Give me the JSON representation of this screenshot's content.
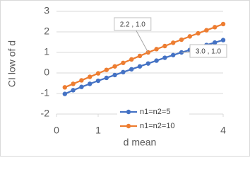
{
  "chart_data": {
    "type": "line",
    "x_label": "d mean",
    "y_label": "CI low of d",
    "x": [
      0.2,
      0.4,
      0.6,
      0.8,
      1.0,
      1.2,
      1.4,
      1.6,
      1.8,
      2.0,
      2.2,
      2.4,
      2.6,
      2.8,
      3.0,
      3.2,
      3.4,
      3.6,
      3.8,
      4.0
    ],
    "series": [
      {
        "name": "n1=n2=5",
        "color": "#4472c4",
        "values": [
          -1.02,
          -0.84,
          -0.68,
          -0.53,
          -0.38,
          -0.24,
          -0.1,
          0.04,
          0.18,
          0.32,
          0.46,
          0.6,
          0.74,
          0.87,
          1.0,
          1.12,
          1.24,
          1.36,
          1.48,
          1.6
        ]
      },
      {
        "name": "n1=n2=10",
        "color": "#ed7d31",
        "values": [
          -0.7,
          -0.53,
          -0.36,
          -0.19,
          -0.02,
          0.15,
          0.32,
          0.49,
          0.66,
          0.83,
          1.0,
          1.16,
          1.31,
          1.47,
          1.62,
          1.78,
          1.93,
          2.08,
          2.23,
          2.38
        ]
      }
    ],
    "annotations": [
      {
        "text": "2.2 , 1.0",
        "x": 2.2,
        "y": 1.0
      },
      {
        "text": "3.0 , 1.0",
        "x": 3.0,
        "y": 1.0
      }
    ],
    "xlim": [
      0,
      4
    ],
    "ylim": [
      -2,
      3
    ],
    "xticks": [
      0,
      1,
      2,
      3,
      4
    ],
    "yticks": [
      -2,
      -1,
      0,
      1,
      2,
      3
    ],
    "grid": true
  }
}
